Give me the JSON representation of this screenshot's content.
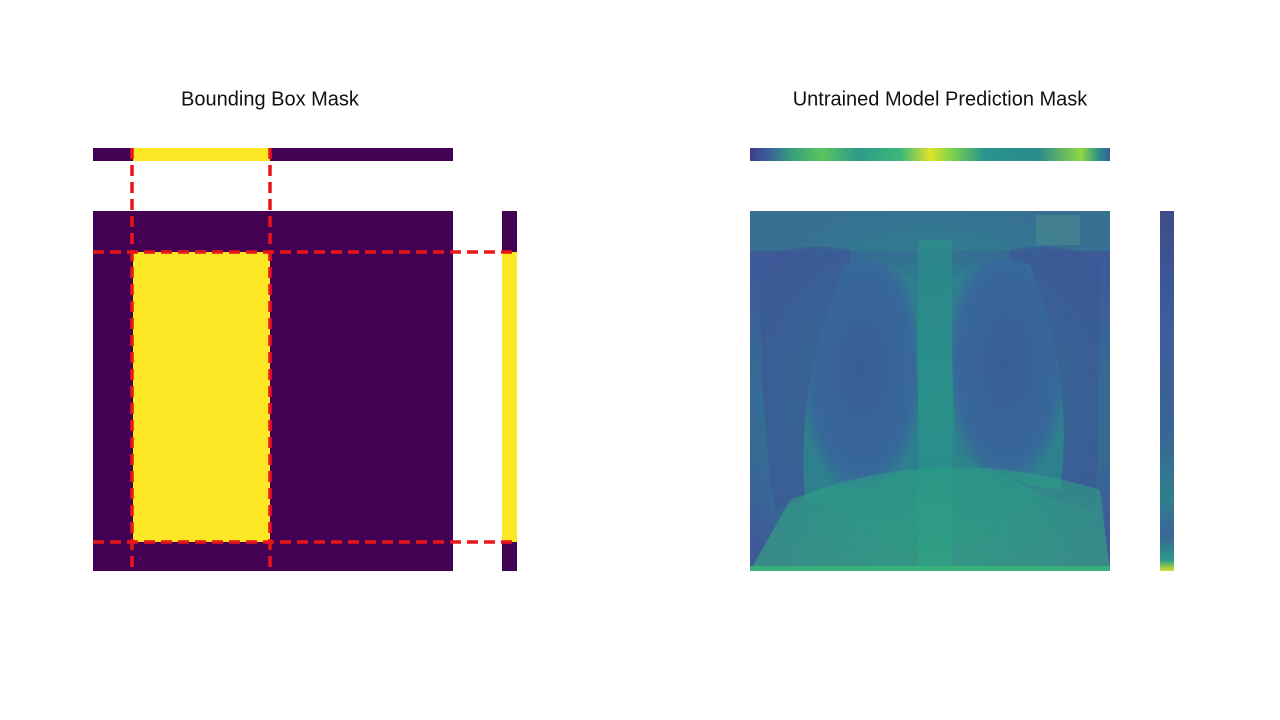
{
  "panels": [
    {
      "title": "Bounding Box Mask"
    },
    {
      "title": "Untrained Model Prediction Mask"
    }
  ]
}
